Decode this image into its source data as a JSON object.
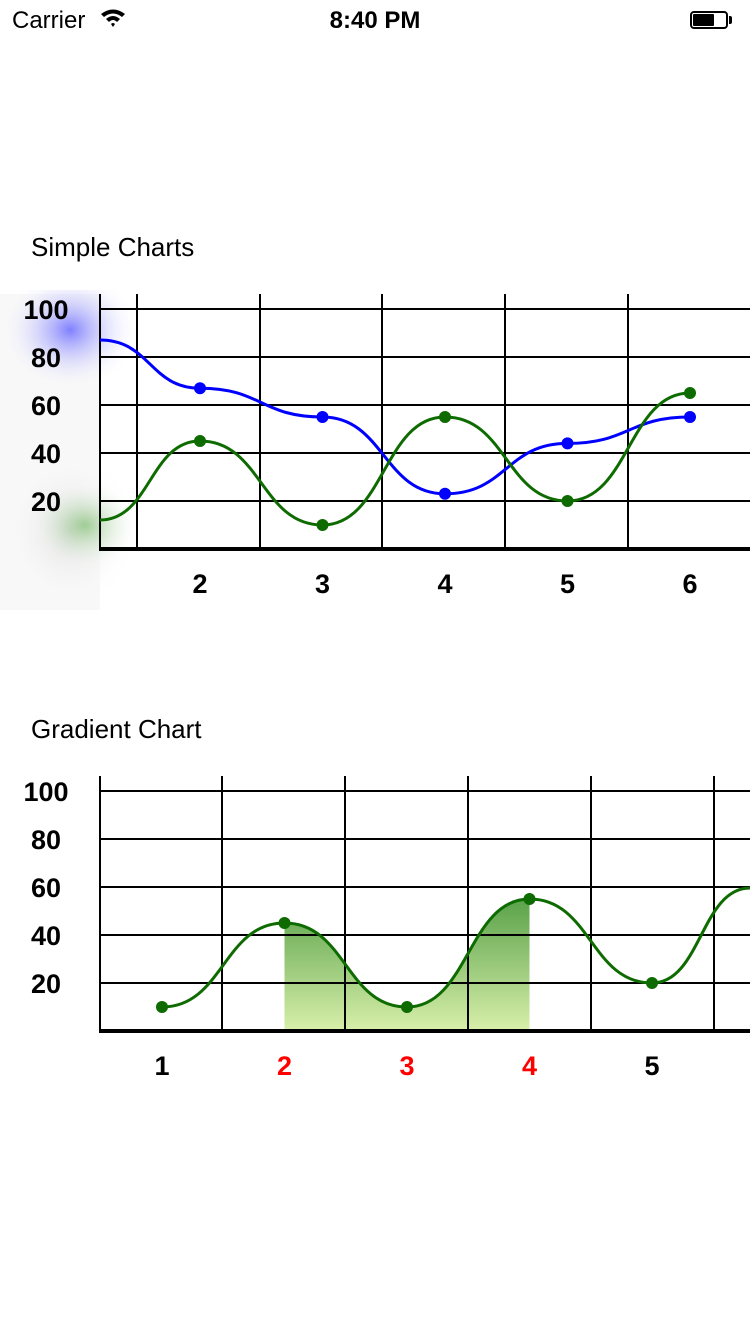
{
  "status_bar": {
    "carrier": "Carrier",
    "time": "8:40 PM"
  },
  "simple_section": {
    "title": "Simple Charts"
  },
  "gradient_section": {
    "title": "Gradient Chart"
  },
  "chart_data": [
    {
      "type": "line",
      "title": "Simple Charts",
      "y_ticks": [
        "20",
        "40",
        "60",
        "80",
        "100"
      ],
      "x_ticks": [
        "2",
        "3",
        "4",
        "5",
        "6"
      ],
      "ylim": [
        0,
        100
      ],
      "smooth": true,
      "grid": true,
      "series": [
        {
          "color": "#0000ff",
          "x": [
            2,
            3,
            4,
            5,
            6
          ],
          "values": [
            67,
            55,
            23,
            44,
            55
          ]
        },
        {
          "color": "#0d6b00",
          "x": [
            2,
            3,
            4,
            5,
            6
          ],
          "values": [
            45,
            10,
            55,
            20,
            65
          ]
        }
      ]
    },
    {
      "type": "area",
      "title": "Gradient Chart",
      "y_ticks": [
        "20",
        "40",
        "60",
        "80",
        "100"
      ],
      "x_ticks": [
        "1",
        "2",
        "3",
        "4",
        "5"
      ],
      "highlight_ticks": [
        "2",
        "3",
        "4"
      ],
      "tick_color": "#000000",
      "highlight_color": "#ff0000",
      "ylim": [
        0,
        100
      ],
      "smooth": true,
      "grid": true,
      "fill_range": [
        2,
        4
      ],
      "fill_gradient": [
        "#5aa24a",
        "#d8efaa"
      ],
      "series": [
        {
          "color": "#0d6b00",
          "x": [
            1,
            2,
            3,
            4,
            5
          ],
          "values": [
            10,
            45,
            10,
            55,
            20
          ]
        }
      ]
    }
  ]
}
